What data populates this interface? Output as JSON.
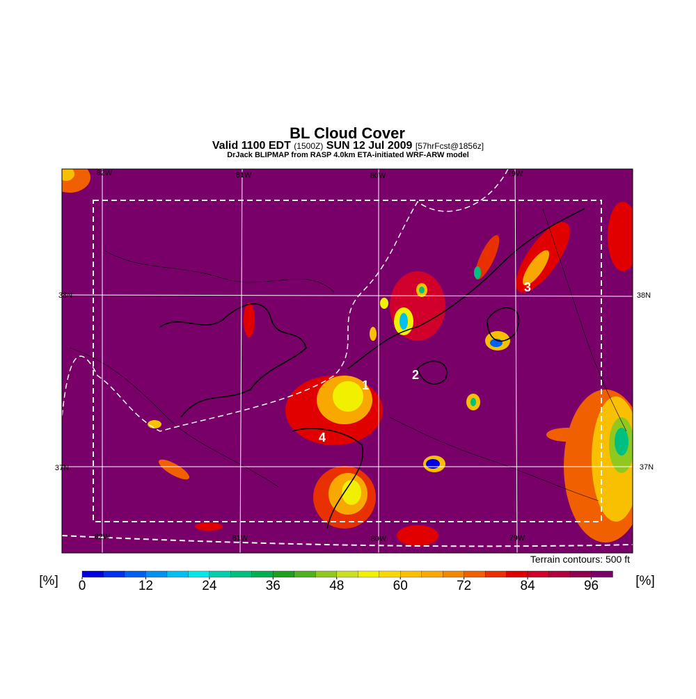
{
  "header": {
    "title": "BL Cloud Cover",
    "subtitle": [
      "Valid 1100 EDT",
      "(1500Z)",
      "SUN 12 Jul 2009",
      "[57hrFcst@1856z]"
    ],
    "credit": "DrJack BLIPMAP from RASP 4.0km ETA-initiated WRF-ARW model"
  },
  "map": {
    "meridians": [
      "82W",
      "81W",
      "80W",
      "79W"
    ],
    "parallels": [
      "38N",
      "37N"
    ],
    "sites": [
      "1",
      "2",
      "3",
      "4"
    ],
    "contour_note": "Terrain contours: 500 ft"
  },
  "legend": {
    "unit": "[%]",
    "range": [
      0,
      100
    ],
    "ticks": [
      0,
      12,
      24,
      36,
      48,
      60,
      72,
      84,
      96
    ],
    "colors": [
      "#0000e0",
      "#0030f0",
      "#0060f0",
      "#0090f0",
      "#00c0f0",
      "#00e8e8",
      "#00d0b0",
      "#00c080",
      "#00b050",
      "#20a020",
      "#50b020",
      "#90c820",
      "#c8e020",
      "#f0f000",
      "#f8d800",
      "#f8c000",
      "#f8a800",
      "#f08800",
      "#f06000",
      "#e83000",
      "#e00000",
      "#d0002a",
      "#b00040",
      "#900050",
      "#780068"
    ]
  }
}
